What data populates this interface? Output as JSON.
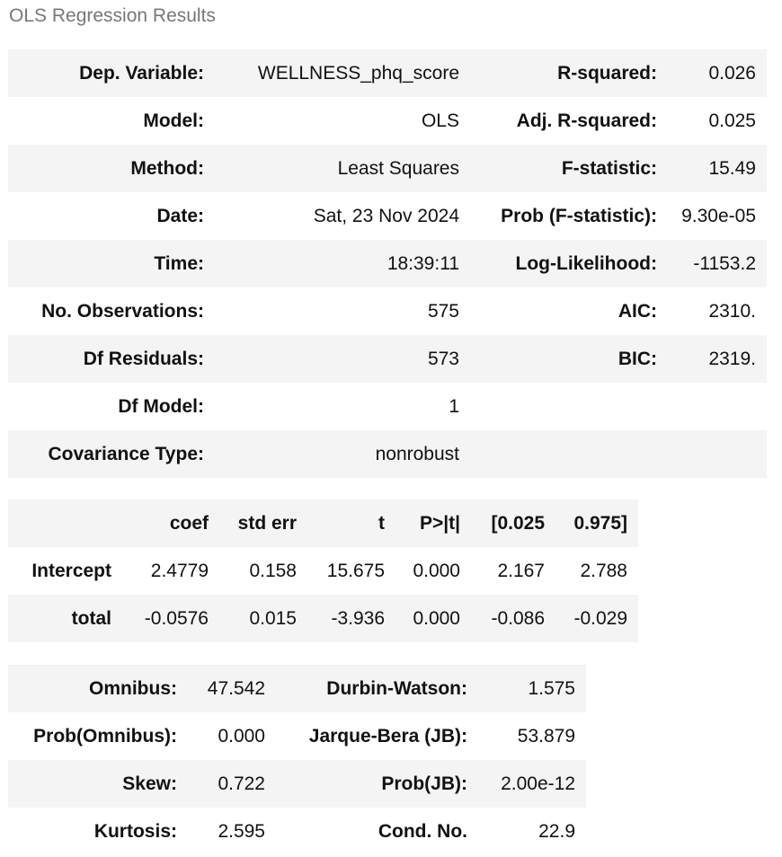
{
  "caption": "OLS Regression Results",
  "summary": {
    "rows": [
      {
        "l1": "Dep. Variable:",
        "v1": "WELLNESS_phq_score",
        "l2": "R-squared:",
        "v2": "0.026"
      },
      {
        "l1": "Model:",
        "v1": "OLS",
        "l2": "Adj. R-squared:",
        "v2": "0.025"
      },
      {
        "l1": "Method:",
        "v1": "Least Squares",
        "l2": "F-statistic:",
        "v2": "15.49"
      },
      {
        "l1": "Date:",
        "v1": "Sat, 23 Nov 2024",
        "l2": "Prob (F-statistic):",
        "v2": "9.30e-05"
      },
      {
        "l1": "Time:",
        "v1": "18:39:11",
        "l2": "Log-Likelihood:",
        "v2": "-1153.2"
      },
      {
        "l1": "No. Observations:",
        "v1": "575",
        "l2": "AIC:",
        "v2": "2310."
      },
      {
        "l1": "Df Residuals:",
        "v1": "573",
        "l2": "BIC:",
        "v2": "2319."
      },
      {
        "l1": "Df Model:",
        "v1": "1",
        "l2": "",
        "v2": ""
      },
      {
        "l1": "Covariance Type:",
        "v1": "nonrobust",
        "l2": "",
        "v2": ""
      }
    ]
  },
  "coefficients": {
    "headers": [
      "",
      "coef",
      "std err",
      "t",
      "P>|t|",
      "[0.025",
      "0.975]"
    ],
    "rows": [
      {
        "name": "Intercept",
        "values": [
          "2.4779",
          "0.158",
          "15.675",
          "0.000",
          "2.167",
          "2.788"
        ]
      },
      {
        "name": "total",
        "values": [
          "-0.0576",
          "0.015",
          "-3.936",
          "0.000",
          "-0.086",
          "-0.029"
        ]
      }
    ]
  },
  "diagnostics": {
    "rows": [
      {
        "l1": "Omnibus:",
        "v1": "47.542",
        "l2": "Durbin-Watson:",
        "v2": "1.575"
      },
      {
        "l1": "Prob(Omnibus):",
        "v1": "0.000",
        "l2": "Jarque-Bera (JB):",
        "v2": "53.879"
      },
      {
        "l1": "Skew:",
        "v1": "0.722",
        "l2": "Prob(JB):",
        "v2": "2.00e-12"
      },
      {
        "l1": "Kurtosis:",
        "v1": "2.595",
        "l2": "Cond. No.",
        "v2": "22.9"
      }
    ]
  }
}
